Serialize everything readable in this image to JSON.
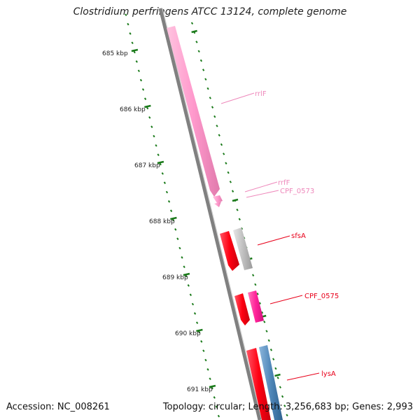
{
  "title": "Clostridium perfringens ATCC 13124, complete genome",
  "accession": "Accession: NC_008261",
  "summary": "Topology: circular; Length: 3,256,683 bp; Genes: 2,993",
  "ticks": [
    "685 kbp",
    "686 kbp",
    "687 kbp",
    "688 kbp",
    "689 kbp",
    "690 kbp",
    "691 kbp"
  ],
  "features": [
    {
      "name": "rrlF",
      "color": "#ee88bb"
    },
    {
      "name": "rrfF",
      "color": "#ee88bb"
    },
    {
      "name": "CPF_0573",
      "color": "#ee88bb"
    },
    {
      "name": "sfsA",
      "color": "#e8001a"
    },
    {
      "name": "CPF_0575",
      "color": "#e8001a"
    },
    {
      "name": "lysA",
      "color": "#e8001a"
    }
  ],
  "colors": {
    "backbone": "#808080",
    "tick": "#1a7a1a",
    "rrna": "#ff99cc",
    "cds_red": "#ff1122",
    "cds_grey": "#b8b8b8",
    "cds_magenta": "#ff3399",
    "cds_blue": "#4f86b8"
  }
}
